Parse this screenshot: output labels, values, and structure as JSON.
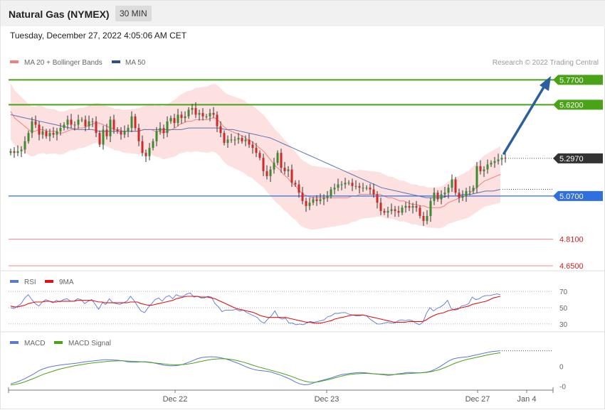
{
  "header": {
    "title": "Natural Gas (NYMEX)",
    "interval": "30 MIN",
    "timestamp": "Tuesday, December 27, 2022 4:05:06 AM CET"
  },
  "legend": {
    "ma20_label": "MA 20 + Bollinger Bands",
    "ma50_label": "MA 50",
    "credit": "Research © 2022 Trading Central",
    "rsi_label": "RSI",
    "rsi_ma_label": "9MA",
    "macd_label": "MACD",
    "macd_signal_label": "MACD Signal"
  },
  "colors": {
    "resistance": "#4aa316",
    "pivot": "#2f6fe0",
    "support": "#e04444",
    "price_tag": "#333333",
    "arrow": "#2c5f9e",
    "bull": "#3a8c2e",
    "bear": "#cf2a2a",
    "bollinger": "#fde0e0",
    "ma20": "#f08080",
    "ma50": "#5a74b4"
  },
  "chart_data": [
    {
      "type": "candlestick",
      "panel": "price",
      "ylim": [
        4.62,
        5.84
      ],
      "price_levels": [
        {
          "name": "resistance-2",
          "value": 5.77,
          "label": "5.7700",
          "kind": "resistance"
        },
        {
          "name": "resistance-1",
          "value": 5.62,
          "label": "5.6200",
          "kind": "resistance"
        },
        {
          "name": "last-price",
          "value": 5.297,
          "label": "5.2970",
          "kind": "last"
        },
        {
          "name": "pivot",
          "value": 5.07,
          "label": "5.0700",
          "kind": "pivot"
        },
        {
          "name": "support-1",
          "value": 4.81,
          "label": "4.8100",
          "kind": "support"
        },
        {
          "name": "support-2",
          "value": 4.65,
          "label": "4.6500",
          "kind": "support"
        }
      ],
      "close": [
        5.34,
        5.33,
        5.34,
        5.35,
        5.4,
        5.45,
        5.52,
        5.5,
        5.44,
        5.46,
        5.43,
        5.45,
        5.44,
        5.46,
        5.48,
        5.5,
        5.53,
        5.5,
        5.5,
        5.53,
        5.53,
        5.49,
        5.52,
        5.52,
        5.45,
        5.38,
        5.47,
        5.43,
        5.53,
        5.47,
        5.46,
        5.44,
        5.46,
        5.48,
        5.55,
        5.48,
        5.4,
        5.33,
        5.31,
        5.36,
        5.4,
        5.46,
        5.48,
        5.45,
        5.52,
        5.54,
        5.51,
        5.56,
        5.54,
        5.55,
        5.59,
        5.6,
        5.56,
        5.57,
        5.55,
        5.55,
        5.57,
        5.56,
        5.49,
        5.45,
        5.39,
        5.41,
        5.41,
        5.41,
        5.42,
        5.4,
        5.41,
        5.38,
        5.36,
        5.33,
        5.3,
        5.22,
        5.19,
        5.23,
        5.27,
        5.33,
        5.24,
        5.22,
        5.23,
        5.15,
        5.14,
        5.09,
        5.04,
        5.01,
        5.03,
        5.05,
        5.04,
        5.05,
        5.06,
        5.07,
        5.11,
        5.12,
        5.14,
        5.14,
        5.15,
        5.15,
        5.13,
        5.13,
        5.12,
        5.12,
        5.12,
        5.11,
        5.08,
        5.03,
        4.98,
        4.97,
        4.98,
        4.99,
        4.98,
        4.97,
        5.0,
        5.01,
        5.0,
        5.01,
        5.0,
        4.95,
        4.92,
        4.95,
        5.04,
        5.09,
        5.05,
        5.08,
        5.09,
        5.12,
        5.17,
        5.09,
        5.06,
        5.07,
        5.1,
        5.1,
        5.12,
        5.25,
        5.22,
        5.23,
        5.26,
        5.27,
        5.28,
        5.29,
        5.3,
        5.297
      ],
      "ma20": [
        5.58,
        5.54,
        5.52,
        5.5,
        5.48,
        5.46,
        5.46,
        5.47,
        5.47,
        5.46,
        5.46,
        5.46,
        5.45,
        5.45,
        5.46,
        5.47,
        5.47,
        5.48,
        5.48,
        5.49,
        5.5,
        5.51,
        5.51,
        5.5,
        5.49,
        5.48,
        5.47,
        5.47,
        5.46,
        5.46,
        5.46,
        5.46,
        5.46,
        5.47,
        5.47,
        5.47,
        5.46,
        5.46,
        5.45,
        5.46,
        5.47,
        5.48,
        5.5,
        5.51,
        5.52,
        5.52,
        5.53,
        5.53,
        5.53,
        5.53,
        5.54,
        5.54,
        5.52,
        5.49,
        5.47,
        5.46,
        5.45,
        5.44,
        5.43,
        5.41,
        5.4,
        5.38,
        5.36,
        5.34,
        5.31,
        5.28,
        5.25,
        5.23,
        5.2,
        5.18,
        5.15,
        5.13,
        5.1,
        5.08,
        5.07,
        5.06,
        5.06,
        5.06,
        5.06,
        5.06,
        5.06,
        5.06,
        5.06,
        5.06,
        5.06,
        5.07,
        5.07,
        5.08,
        5.08,
        5.08,
        5.08,
        5.08,
        5.08,
        5.07,
        5.06,
        5.06,
        5.05,
        5.04,
        5.04,
        5.03,
        5.02,
        5.02,
        5.01,
        5.01,
        5.0,
        5.0,
        5.0,
        5.0,
        5.01,
        5.03,
        5.04,
        5.05,
        5.06,
        5.07,
        5.08,
        5.1,
        5.12,
        5.14,
        5.16,
        5.17,
        5.18,
        5.19,
        5.2
      ],
      "ma50": [
        5.56,
        5.55,
        5.54,
        5.53,
        5.52,
        5.51,
        5.5,
        5.49,
        5.48,
        5.47,
        5.47,
        5.47,
        5.46,
        5.46,
        5.46,
        5.46,
        5.46,
        5.46,
        5.47,
        5.47,
        5.47,
        5.47,
        5.47,
        5.47,
        5.48,
        5.48,
        5.48,
        5.48,
        5.48,
        5.47,
        5.47,
        5.46,
        5.45,
        5.44,
        5.43,
        5.42,
        5.4,
        5.38,
        5.36,
        5.34,
        5.32,
        5.3,
        5.28,
        5.26,
        5.24,
        5.22,
        5.2,
        5.18,
        5.16,
        5.14,
        5.12,
        5.11,
        5.1,
        5.09,
        5.08,
        5.07,
        5.06,
        5.06,
        5.06,
        5.07,
        5.07,
        5.08,
        5.08,
        5.09,
        5.1,
        5.1,
        5.11
      ]
    },
    {
      "type": "line",
      "panel": "rsi",
      "reference_levels": [
        70,
        50,
        30
      ],
      "ylim": [
        22,
        78
      ],
      "series": [
        {
          "name": "RSI",
          "values": [
            50,
            49,
            52,
            55,
            62,
            66,
            60,
            55,
            52,
            57,
            60,
            58,
            56,
            59,
            57,
            60,
            61,
            58,
            58,
            61,
            60,
            55,
            58,
            60,
            54,
            48,
            56,
            54,
            61,
            56,
            55,
            54,
            56,
            58,
            64,
            59,
            52,
            46,
            44,
            50,
            55,
            60,
            62,
            58,
            63,
            65,
            61,
            66,
            64,
            64,
            67,
            68,
            63,
            64,
            62,
            62,
            64,
            63,
            55,
            51,
            45,
            47,
            47,
            47,
            48,
            46,
            47,
            44,
            42,
            40,
            38,
            33,
            31,
            36,
            40,
            46,
            38,
            36,
            37,
            31,
            31,
            29,
            30,
            29,
            31,
            33,
            32,
            33,
            34,
            35,
            39,
            40,
            43,
            43,
            44,
            44,
            42,
            41,
            40,
            40,
            41,
            40,
            36,
            33,
            30,
            30,
            31,
            32,
            31,
            31,
            34,
            35,
            34,
            35,
            34,
            31,
            29,
            32,
            43,
            50,
            46,
            49,
            51,
            54,
            59,
            49,
            47,
            48,
            52,
            53,
            55,
            63,
            60,
            61,
            64,
            65,
            65,
            66,
            67,
            66
          ]
        },
        {
          "name": "9MA",
          "values": [
            52,
            51,
            51,
            52,
            53,
            55,
            56,
            57,
            57,
            57,
            58,
            58,
            57,
            57,
            58,
            58,
            58,
            58,
            58,
            59,
            59,
            59,
            59,
            59,
            58,
            57,
            57,
            56,
            56,
            56,
            56,
            56,
            56,
            56,
            57,
            57,
            57,
            55,
            54,
            53,
            53,
            54,
            55,
            56,
            57,
            58,
            59,
            61,
            62,
            63,
            64,
            64,
            64,
            64,
            63,
            63,
            63,
            62,
            61,
            59,
            57,
            55,
            53,
            51,
            49,
            48,
            47,
            46,
            45,
            44,
            42,
            40,
            39,
            38,
            38,
            38,
            38,
            38,
            38,
            37,
            36,
            35,
            34,
            33,
            32,
            32,
            31,
            31,
            31,
            32,
            33,
            34,
            36,
            37,
            38,
            39,
            40,
            41,
            41,
            41,
            41,
            40,
            39,
            38,
            37,
            36,
            35,
            34,
            33,
            32,
            32,
            32,
            32,
            33,
            33,
            33,
            33,
            33,
            35,
            38,
            40,
            42,
            43,
            44,
            46,
            47,
            48,
            49,
            50,
            51,
            52,
            54,
            55,
            56,
            57,
            58,
            60,
            62,
            63,
            64
          ]
        }
      ]
    },
    {
      "type": "line",
      "panel": "macd",
      "y_ticks": [
        "0",
        "-0"
      ],
      "ylim": [
        -0.095,
        0.075
      ],
      "series": [
        {
          "name": "MACD",
          "values": [
            -0.07,
            -0.065,
            -0.058,
            -0.05,
            -0.04,
            -0.03,
            -0.018,
            -0.01,
            -0.004,
            0.0,
            0.003,
            0.006,
            0.008,
            0.01,
            0.012,
            0.015,
            0.018,
            0.02,
            0.022,
            0.024,
            0.026,
            0.026,
            0.025,
            0.024,
            0.022,
            0.018,
            0.016,
            0.016,
            0.018,
            0.018,
            0.016,
            0.012,
            0.008,
            0.004,
            0.002,
            0.002,
            0.004,
            0.008,
            0.015,
            0.022,
            0.03,
            0.035,
            0.037,
            0.038,
            0.037,
            0.034,
            0.03,
            0.024,
            0.017,
            0.01,
            0.002,
            -0.006,
            -0.012,
            -0.016,
            -0.018,
            -0.02,
            -0.024,
            -0.03,
            -0.036,
            -0.044,
            -0.052,
            -0.062,
            -0.07,
            -0.074,
            -0.072,
            -0.066,
            -0.06,
            -0.055,
            -0.05,
            -0.045,
            -0.038,
            -0.033,
            -0.03,
            -0.028,
            -0.026,
            -0.025,
            -0.026,
            -0.028,
            -0.03,
            -0.032,
            -0.034,
            -0.036,
            -0.034,
            -0.03,
            -0.028,
            -0.025,
            -0.025,
            -0.026,
            -0.026,
            -0.024,
            -0.02,
            -0.012,
            -0.002,
            0.01,
            0.022,
            0.03,
            0.034,
            0.036,
            0.038,
            0.042,
            0.046,
            0.05,
            0.054,
            0.058,
            0.06,
            0.062
          ]
        },
        {
          "name": "MACD Signal",
          "values": [
            -0.075,
            -0.072,
            -0.068,
            -0.062,
            -0.055,
            -0.048,
            -0.04,
            -0.032,
            -0.026,
            -0.02,
            -0.014,
            -0.009,
            -0.005,
            -0.001,
            0.003,
            0.006,
            0.009,
            0.012,
            0.014,
            0.016,
            0.018,
            0.02,
            0.021,
            0.022,
            0.022,
            0.021,
            0.02,
            0.019,
            0.018,
            0.017,
            0.015,
            0.013,
            0.011,
            0.009,
            0.007,
            0.006,
            0.006,
            0.007,
            0.009,
            0.012,
            0.016,
            0.02,
            0.024,
            0.027,
            0.029,
            0.03,
            0.03,
            0.028,
            0.025,
            0.021,
            0.016,
            0.01,
            0.004,
            -0.002,
            -0.007,
            -0.012,
            -0.017,
            -0.022,
            -0.027,
            -0.033,
            -0.039,
            -0.046,
            -0.053,
            -0.059,
            -0.063,
            -0.064,
            -0.062,
            -0.058,
            -0.054,
            -0.049,
            -0.044,
            -0.039,
            -0.035,
            -0.032,
            -0.03,
            -0.029,
            -0.028,
            -0.029,
            -0.03,
            -0.031,
            -0.032,
            -0.033,
            -0.033,
            -0.032,
            -0.031,
            -0.029,
            -0.028,
            -0.027,
            -0.026,
            -0.025,
            -0.022,
            -0.018,
            -0.013,
            -0.006,
            0.002,
            0.01,
            0.017,
            0.023,
            0.028,
            0.032,
            0.036,
            0.04,
            0.044,
            0.048,
            0.051,
            0.054
          ]
        }
      ]
    }
  ],
  "x_axis": {
    "labels": [
      "Dec 22",
      "Dec 23",
      "Dec 27",
      "Jan 4"
    ]
  }
}
